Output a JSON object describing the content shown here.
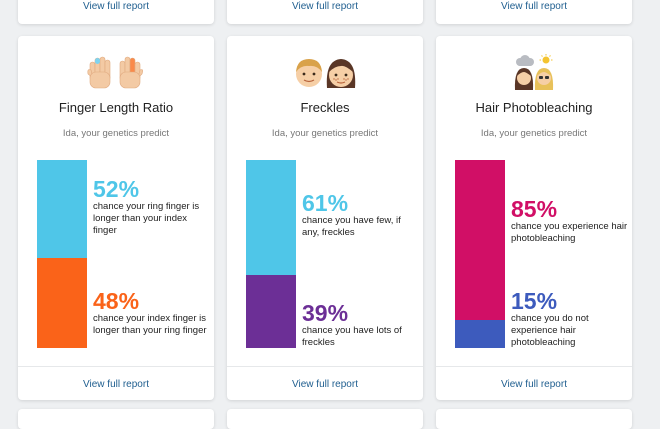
{
  "link_label": "View full report",
  "cards": [
    {
      "title": "Finger Length Ratio",
      "subtitle": "Ida, your genetics predict",
      "icon": "hands-icon",
      "results": [
        {
          "pct": "52%",
          "value": 52,
          "desc": "chance your ring finger is longer than your index finger",
          "color": "#4fc6e8"
        },
        {
          "pct": "48%",
          "value": 48,
          "desc": "chance your index finger is longer than your ring finger",
          "color": "#fa6319"
        }
      ]
    },
    {
      "title": "Freckles",
      "subtitle": "Ida, your genetics predict",
      "icon": "faces-icon",
      "results": [
        {
          "pct": "61%",
          "value": 61,
          "desc": "chance you have few, if any, freckles",
          "color": "#4fc6e8"
        },
        {
          "pct": "39%",
          "value": 39,
          "desc": "chance you have lots of freckles",
          "color": "#6c2f96"
        }
      ]
    },
    {
      "title": "Hair Photobleaching",
      "subtitle": "Ida, your genetics predict",
      "icon": "sun-hair-icon",
      "results": [
        {
          "pct": "85%",
          "value": 85,
          "desc": "chance you experience hair photobleaching",
          "color": "#d10f66"
        },
        {
          "pct": "15%",
          "value": 15,
          "desc": "chance you do not experience hair photobleaching",
          "color": "#3d5bbd"
        }
      ]
    }
  ]
}
